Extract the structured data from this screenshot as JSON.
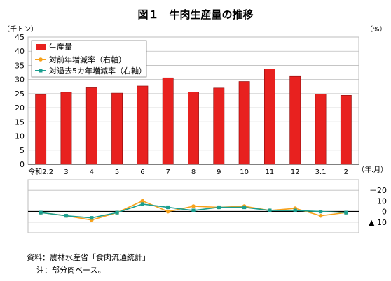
{
  "title": "図１　牛肉生産量の推移",
  "left_unit": "（千トン）",
  "right_unit": "（%）",
  "x_unit": "（年.月）",
  "chart_data": {
    "type": "bar",
    "categories": [
      "令和2.2",
      "3",
      "4",
      "5",
      "6",
      "7",
      "8",
      "9",
      "10",
      "11",
      "12",
      "3.1",
      "2"
    ],
    "ylim": [
      0,
      45
    ],
    "y_ticks": [
      0,
      5,
      10,
      15,
      20,
      25,
      30,
      35,
      40,
      45
    ],
    "grid": true,
    "legend_position": "top-left",
    "series": [
      {
        "name": "生産量",
        "kind": "bar",
        "color": "#e8211f",
        "values": [
          24.7,
          25.5,
          27.1,
          25.2,
          27.7,
          30.6,
          25.6,
          27.0,
          29.3,
          33.7,
          31.1,
          24.9,
          24.4
        ]
      },
      {
        "name": "対前年増減率（右軸）",
        "kind": "line",
        "color": "#f7a21c",
        "marker": "circle",
        "values": [
          -1,
          -4,
          -8,
          -1,
          10,
          0,
          5,
          4,
          5,
          1,
          3,
          -4,
          -1
        ]
      },
      {
        "name": "対過去5カ年増減率（右軸）",
        "kind": "line",
        "color": "#1a9e8f",
        "marker": "square",
        "values": [
          -1,
          -4,
          -6,
          -1,
          7,
          4,
          1,
          4,
          4,
          1,
          1,
          0,
          -1
        ]
      }
    ],
    "right_axis": {
      "ylim": [
        -20,
        30
      ],
      "ticks": [
        {
          "value": 20,
          "label": "＋20"
        },
        {
          "value": 10,
          "label": "＋10"
        },
        {
          "value": 0,
          "label": "0"
        },
        {
          "value": -10,
          "label": "▲ 10"
        }
      ]
    }
  },
  "notes": [
    "資料：農林水産省「食肉流通統計」",
    "注：部分肉ベース。"
  ]
}
